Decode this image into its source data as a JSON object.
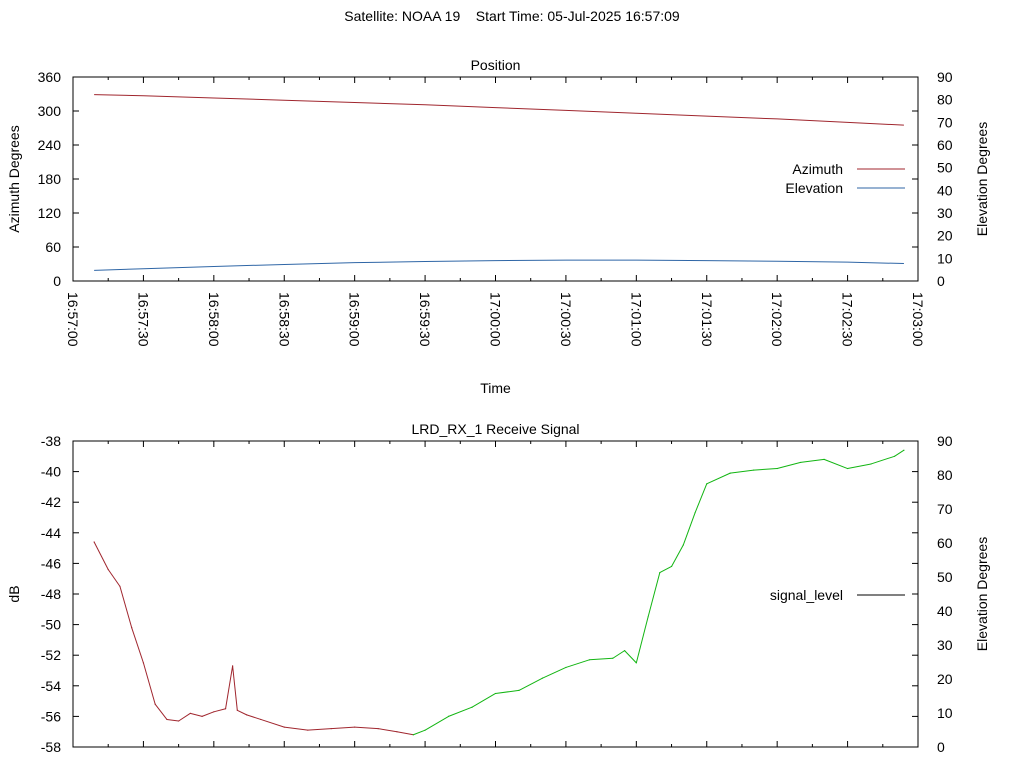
{
  "title": "Satellite: NOAA 19    Start Time: 05-Jul-2025 16:57:09",
  "colors": {
    "azimuth": "#a0262e",
    "elevation": "#2f66a6",
    "signal_weak": "#a0262e",
    "signal_strong": "#12b512",
    "signal_key": "#000000",
    "axis": "#000000"
  },
  "chart_data": [
    {
      "type": "line",
      "title": "Position",
      "xlabel": "Time",
      "ylabel": "Azimuth Degrees",
      "y2label": "Elevation Degrees",
      "x_ticks": [
        "16:57:00",
        "16:57:30",
        "16:58:00",
        "16:58:30",
        "16:59:00",
        "16:59:30",
        "17:00:00",
        "17:00:30",
        "17:01:00",
        "17:01:30",
        "17:02:00",
        "17:02:30",
        "17:03:00"
      ],
      "y_ticks": [
        "0",
        "60",
        "120",
        "180",
        "240",
        "300",
        "360"
      ],
      "y2_ticks": [
        "0",
        "10",
        "20",
        "30",
        "40",
        "50",
        "60",
        "70",
        "80",
        "90"
      ],
      "xlim": [
        "16:57:00",
        "17:03:00"
      ],
      "ylim": [
        0,
        360
      ],
      "y2lim": [
        0,
        90
      ],
      "legend_position": "right",
      "series": [
        {
          "name": "Azimuth",
          "axis": "y",
          "x": [
            "16:57:09",
            "16:57:30",
            "16:58:00",
            "16:58:30",
            "16:59:00",
            "16:59:30",
            "17:00:00",
            "17:00:30",
            "17:01:00",
            "17:01:30",
            "17:02:00",
            "17:02:30",
            "17:02:54"
          ],
          "values": [
            329,
            327,
            323,
            319,
            315,
            311,
            306,
            301,
            296,
            291,
            286,
            280,
            275
          ]
        },
        {
          "name": "Elevation",
          "axis": "y2",
          "x": [
            "16:57:09",
            "16:57:30",
            "16:58:00",
            "16:58:30",
            "16:59:00",
            "16:59:30",
            "17:00:00",
            "17:00:30",
            "17:01:00",
            "17:01:30",
            "17:02:00",
            "17:02:30",
            "17:02:54"
          ],
          "values": [
            4.7,
            5.4,
            6.4,
            7.3,
            8.1,
            8.6,
            9.0,
            9.2,
            9.2,
            9.0,
            8.7,
            8.3,
            7.7
          ]
        }
      ]
    },
    {
      "type": "line",
      "title": "LRD_RX_1 Receive Signal",
      "ylabel": "dB",
      "y2label": "Elevation Degrees",
      "y_ticks": [
        "-58",
        "-56",
        "-54",
        "-52",
        "-50",
        "-48",
        "-46",
        "-44",
        "-42",
        "-40",
        "-38"
      ],
      "y2_ticks": [
        "0",
        "10",
        "20",
        "30",
        "40",
        "50",
        "60",
        "70",
        "80",
        "90"
      ],
      "xlim": [
        "16:57:00",
        "17:03:00"
      ],
      "ylim": [
        -58,
        -38
      ],
      "y2lim": [
        0,
        90
      ],
      "legend_position": "right",
      "series": [
        {
          "name": "signal_level",
          "axis": "y",
          "x": [
            "16:57:09",
            "16:57:15",
            "16:57:20",
            "16:57:25",
            "16:57:30",
            "16:57:35",
            "16:57:40",
            "16:57:45",
            "16:57:50",
            "16:57:55",
            "16:58:00",
            "16:58:05",
            "16:58:08",
            "16:58:10",
            "16:58:14",
            "16:58:20",
            "16:58:30",
            "16:58:40",
            "16:58:50",
            "16:59:00",
            "16:59:10",
            "16:59:18",
            "16:59:25",
            "16:59:30",
            "16:59:40",
            "16:59:50",
            "17:00:00",
            "17:00:10",
            "17:00:20",
            "17:00:30",
            "17:00:40",
            "17:00:50",
            "17:00:55",
            "17:01:00",
            "17:01:05",
            "17:01:10",
            "17:01:15",
            "17:01:20",
            "17:01:25",
            "17:01:30",
            "17:01:40",
            "17:01:50",
            "17:02:00",
            "17:02:10",
            "17:02:20",
            "17:02:30",
            "17:02:40",
            "17:02:50",
            "17:02:54"
          ],
          "values": [
            -44.6,
            -46.4,
            -47.5,
            -50.2,
            -52.5,
            -55.2,
            -56.2,
            -56.3,
            -55.8,
            -56.0,
            -55.7,
            -55.5,
            -52.7,
            -55.6,
            -55.9,
            -56.2,
            -56.7,
            -56.9,
            -56.8,
            -56.7,
            -56.8,
            -57.0,
            -57.2,
            -56.9,
            -56.0,
            -55.4,
            -54.5,
            -54.3,
            -53.5,
            -52.8,
            -52.3,
            -52.2,
            -51.7,
            -52.5,
            -49.5,
            -46.6,
            -46.2,
            -44.8,
            -42.7,
            -40.8,
            -40.1,
            -39.9,
            -39.8,
            -39.4,
            -39.2,
            -39.8,
            -39.5,
            -39.0,
            -38.6
          ]
        }
      ]
    }
  ]
}
